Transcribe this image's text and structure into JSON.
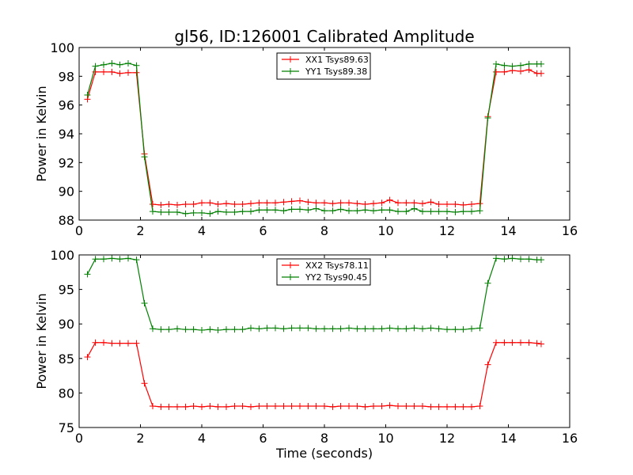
{
  "figure": {
    "title": "gl56, ID:126001 Calibrated Amplitude",
    "xlabel": "Time (seconds)"
  },
  "chart_data": [
    {
      "type": "line",
      "title": "gl56, ID:126001 Calibrated Amplitude",
      "xlabel": "",
      "ylabel": "Power in Kelvin",
      "xlim": [
        0,
        16
      ],
      "ylim": [
        88,
        100
      ],
      "xticks": [
        0,
        2,
        4,
        6,
        8,
        10,
        12,
        14,
        16
      ],
      "yticks": [
        88,
        90,
        92,
        94,
        96,
        98,
        100
      ],
      "grid": false,
      "legend_position": "top-center",
      "x": [
        0.27,
        0.53,
        0.8,
        1.07,
        1.33,
        1.6,
        1.87,
        2.13,
        2.4,
        2.67,
        2.93,
        3.2,
        3.47,
        3.73,
        4.0,
        4.27,
        4.53,
        4.8,
        5.07,
        5.33,
        5.6,
        5.87,
        6.13,
        6.4,
        6.67,
        6.93,
        7.2,
        7.47,
        7.73,
        8.0,
        8.27,
        8.53,
        8.8,
        9.07,
        9.33,
        9.6,
        9.87,
        10.13,
        10.4,
        10.67,
        10.93,
        11.2,
        11.47,
        11.73,
        12.0,
        12.27,
        12.53,
        12.8,
        13.07,
        13.33,
        13.6,
        13.87,
        14.13,
        14.4,
        14.67,
        14.93,
        15.07
      ],
      "series": [
        {
          "name": "XX1 Tsys89.63",
          "color": "#ff0000",
          "values": [
            96.4,
            98.3,
            98.3,
            98.3,
            98.2,
            98.25,
            98.25,
            92.6,
            89.1,
            89.05,
            89.1,
            89.05,
            89.1,
            89.1,
            89.2,
            89.2,
            89.1,
            89.15,
            89.1,
            89.1,
            89.15,
            89.2,
            89.2,
            89.2,
            89.25,
            89.3,
            89.35,
            89.25,
            89.2,
            89.2,
            89.15,
            89.2,
            89.2,
            89.15,
            89.1,
            89.15,
            89.2,
            89.4,
            89.2,
            89.2,
            89.2,
            89.15,
            89.25,
            89.1,
            89.1,
            89.1,
            89.05,
            89.1,
            89.15,
            95.2,
            98.3,
            98.3,
            98.4,
            98.35,
            98.45,
            98.2,
            98.2
          ]
        },
        {
          "name": "YY1 Tsys89.38",
          "color": "#008000",
          "values": [
            96.7,
            98.7,
            98.8,
            98.9,
            98.8,
            98.9,
            98.75,
            92.4,
            88.6,
            88.55,
            88.55,
            88.55,
            88.45,
            88.5,
            88.5,
            88.45,
            88.6,
            88.55,
            88.55,
            88.6,
            88.6,
            88.7,
            88.7,
            88.7,
            88.65,
            88.75,
            88.75,
            88.7,
            88.8,
            88.65,
            88.65,
            88.75,
            88.65,
            88.65,
            88.7,
            88.65,
            88.7,
            88.7,
            88.6,
            88.6,
            88.8,
            88.6,
            88.6,
            88.6,
            88.6,
            88.55,
            88.6,
            88.6,
            88.65,
            95.1,
            98.85,
            98.75,
            98.7,
            98.75,
            98.85,
            98.85,
            98.85
          ]
        }
      ]
    },
    {
      "type": "line",
      "title": "",
      "xlabel": "Time (seconds)",
      "ylabel": "Power in Kelvin",
      "xlim": [
        0,
        16
      ],
      "ylim": [
        75,
        100
      ],
      "xticks": [
        0,
        2,
        4,
        6,
        8,
        10,
        12,
        14,
        16
      ],
      "yticks": [
        75,
        80,
        85,
        90,
        95,
        100
      ],
      "grid": false,
      "legend_position": "top-center",
      "x": [
        0.27,
        0.53,
        0.8,
        1.07,
        1.33,
        1.6,
        1.87,
        2.13,
        2.4,
        2.67,
        2.93,
        3.2,
        3.47,
        3.73,
        4.0,
        4.27,
        4.53,
        4.8,
        5.07,
        5.33,
        5.6,
        5.87,
        6.13,
        6.4,
        6.67,
        6.93,
        7.2,
        7.47,
        7.73,
        8.0,
        8.27,
        8.53,
        8.8,
        9.07,
        9.33,
        9.6,
        9.87,
        10.13,
        10.4,
        10.67,
        10.93,
        11.2,
        11.47,
        11.73,
        12.0,
        12.27,
        12.53,
        12.8,
        13.07,
        13.33,
        13.6,
        13.87,
        14.13,
        14.4,
        14.67,
        14.93,
        15.07
      ],
      "series": [
        {
          "name": "XX2 Tsys78.11",
          "color": "#ff0000",
          "values": [
            85.2,
            87.3,
            87.3,
            87.2,
            87.2,
            87.2,
            87.2,
            81.4,
            78.1,
            78.0,
            78.0,
            78.0,
            78.0,
            78.1,
            78.0,
            78.1,
            78.0,
            78.0,
            78.1,
            78.1,
            78.0,
            78.1,
            78.1,
            78.1,
            78.1,
            78.1,
            78.1,
            78.1,
            78.1,
            78.1,
            78.0,
            78.1,
            78.1,
            78.1,
            78.0,
            78.1,
            78.1,
            78.2,
            78.1,
            78.1,
            78.1,
            78.1,
            78.0,
            78.0,
            78.0,
            78.0,
            78.0,
            78.0,
            78.1,
            84.1,
            87.3,
            87.3,
            87.3,
            87.3,
            87.3,
            87.2,
            87.1
          ]
        },
        {
          "name": "YY2 Tsys90.45",
          "color": "#008000",
          "values": [
            97.2,
            99.4,
            99.4,
            99.5,
            99.4,
            99.5,
            99.3,
            93.0,
            89.3,
            89.2,
            89.2,
            89.3,
            89.2,
            89.2,
            89.1,
            89.2,
            89.1,
            89.2,
            89.2,
            89.2,
            89.4,
            89.3,
            89.4,
            89.4,
            89.3,
            89.4,
            89.4,
            89.4,
            89.3,
            89.3,
            89.3,
            89.3,
            89.4,
            89.3,
            89.3,
            89.3,
            89.3,
            89.4,
            89.3,
            89.3,
            89.4,
            89.3,
            89.4,
            89.3,
            89.2,
            89.2,
            89.2,
            89.3,
            89.4,
            95.9,
            99.5,
            99.4,
            99.5,
            99.4,
            99.4,
            99.3,
            99.3
          ]
        }
      ]
    }
  ]
}
